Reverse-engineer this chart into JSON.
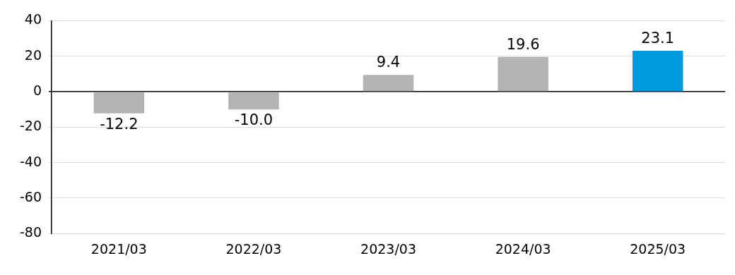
{
  "chart_data": {
    "type": "bar",
    "categories": [
      "2021/03",
      "2022/03",
      "2023/03",
      "2024/03",
      "2025/03"
    ],
    "values": [
      -12.2,
      -10.0,
      9.4,
      19.6,
      23.1
    ],
    "colors": [
      "#b3b3b3",
      "#b3b3b3",
      "#b3b3b3",
      "#b3b3b3",
      "#009ade"
    ],
    "ylim": [
      -80,
      40
    ],
    "yticks": [
      -80,
      -60,
      -40,
      -20,
      0,
      20,
      40
    ],
    "value_labels": [
      "-12.2",
      "-10.0",
      "9.4",
      "19.6",
      "23.1"
    ],
    "grid": "y"
  }
}
